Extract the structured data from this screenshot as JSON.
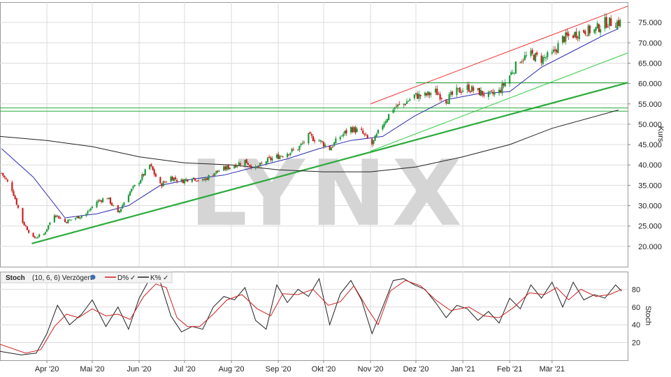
{
  "watermark": "LYNX",
  "colors": {
    "up": "#1a9a3a",
    "down": "#cc1f1f",
    "sma_short": "#2b2bb0",
    "sma_long": "#222222",
    "trend_green": "#2aaa3a",
    "channel_red": "#ee3333",
    "channel_light": "#33cc44",
    "stoch_d": "#cc2222",
    "stoch_k": "#222222"
  },
  "chart_data": [
    {
      "type": "candlestick",
      "panel": "price",
      "ylabel": "Kurs",
      "ylim": [
        15,
        80
      ],
      "yticks": [
        "20.000",
        "25.000",
        "30.000",
        "35.000",
        "40.000",
        "45.000",
        "50.000",
        "55.000",
        "60.000",
        "65.000",
        "70.000",
        "75.000"
      ],
      "ytick_values": [
        20,
        25,
        30,
        35,
        40,
        45,
        50,
        55,
        60,
        65,
        70,
        75
      ],
      "x_date_range": [
        "2020-03-01",
        "2021-04-20"
      ],
      "xticks": [
        {
          "label": "Apr '20",
          "date": "2020-04-01"
        },
        {
          "label": "Mai '20",
          "date": "2020-05-01"
        },
        {
          "label": "Jun '20",
          "date": "2020-06-01"
        },
        {
          "label": "Jul '20",
          "date": "2020-07-01"
        },
        {
          "label": "Aug '20",
          "date": "2020-08-01"
        },
        {
          "label": "Sep '20",
          "date": "2020-09-01"
        },
        {
          "label": "Okt '20",
          "date": "2020-10-01"
        },
        {
          "label": "Nov '20",
          "date": "2020-11-01"
        },
        {
          "label": "Dez '20",
          "date": "2020-12-01"
        },
        {
          "label": "Jan '21",
          "date": "2021-01-01"
        },
        {
          "label": "Feb '21",
          "date": "2021-02-01"
        },
        {
          "label": "Mär '21",
          "date": "2021-03-01"
        }
      ],
      "price_path": [
        [
          "2020-03-02",
          38
        ],
        [
          "2020-03-09",
          34
        ],
        [
          "2020-03-16",
          26
        ],
        [
          "2020-03-23",
          22
        ],
        [
          "2020-03-30",
          23
        ],
        [
          "2020-04-06",
          28
        ],
        [
          "2020-04-13",
          26
        ],
        [
          "2020-04-20",
          27
        ],
        [
          "2020-04-27",
          28
        ],
        [
          "2020-05-04",
          31
        ],
        [
          "2020-05-11",
          32
        ],
        [
          "2020-05-18",
          28
        ],
        [
          "2020-05-25",
          33
        ],
        [
          "2020-06-01",
          36
        ],
        [
          "2020-06-08",
          40
        ],
        [
          "2020-06-15",
          35
        ],
        [
          "2020-06-22",
          37
        ],
        [
          "2020-06-29",
          36
        ],
        [
          "2020-07-06",
          37
        ],
        [
          "2020-07-13",
          36
        ],
        [
          "2020-07-20",
          38
        ],
        [
          "2020-07-27",
          39
        ],
        [
          "2020-08-03",
          40
        ],
        [
          "2020-08-10",
          41
        ],
        [
          "2020-08-17",
          39
        ],
        [
          "2020-08-24",
          41
        ],
        [
          "2020-08-31",
          42
        ],
        [
          "2020-09-07",
          43
        ],
        [
          "2020-09-14",
          44
        ],
        [
          "2020-09-21",
          47
        ],
        [
          "2020-09-28",
          46
        ],
        [
          "2020-10-05",
          44
        ],
        [
          "2020-10-12",
          47
        ],
        [
          "2020-10-19",
          49
        ],
        [
          "2020-10-26",
          48
        ],
        [
          "2020-11-02",
          45
        ],
        [
          "2020-11-09",
          50
        ],
        [
          "2020-11-16",
          54
        ],
        [
          "2020-11-23",
          55
        ],
        [
          "2020-11-30",
          57
        ],
        [
          "2020-12-07",
          57
        ],
        [
          "2020-12-14",
          58
        ],
        [
          "2020-12-21",
          56
        ],
        [
          "2020-12-28",
          58
        ],
        [
          "2021-01-04",
          59
        ],
        [
          "2021-01-11",
          58
        ],
        [
          "2021-01-18",
          57
        ],
        [
          "2021-01-25",
          58
        ],
        [
          "2021-02-01",
          62
        ],
        [
          "2021-02-08",
          66
        ],
        [
          "2021-02-15",
          67
        ],
        [
          "2021-02-22",
          66
        ],
        [
          "2021-03-01",
          67
        ],
        [
          "2021-03-08",
          71
        ],
        [
          "2021-03-15",
          72
        ],
        [
          "2021-03-22",
          73
        ],
        [
          "2021-03-29",
          73
        ],
        [
          "2021-04-05",
          75
        ],
        [
          "2021-04-12",
          75
        ]
      ],
      "sma_short_path": [
        [
          "2020-03-02",
          44
        ],
        [
          "2020-03-23",
          37
        ],
        [
          "2020-04-13",
          27
        ],
        [
          "2020-05-04",
          28
        ],
        [
          "2020-05-25",
          30
        ],
        [
          "2020-06-15",
          35
        ],
        [
          "2020-07-06",
          36.5
        ],
        [
          "2020-07-27",
          37.5
        ],
        [
          "2020-08-17",
          39.5
        ],
        [
          "2020-09-07",
          41.5
        ],
        [
          "2020-09-28",
          44
        ],
        [
          "2020-10-19",
          46
        ],
        [
          "2020-11-09",
          47
        ],
        [
          "2020-11-30",
          52
        ],
        [
          "2020-12-21",
          56
        ],
        [
          "2021-01-11",
          57.5
        ],
        [
          "2021-02-01",
          58
        ],
        [
          "2021-02-22",
          64
        ],
        [
          "2021-03-15",
          68
        ],
        [
          "2021-04-05",
          72
        ],
        [
          "2021-04-14",
          73.5
        ]
      ],
      "sma_long_path": [
        [
          "2020-03-01",
          47
        ],
        [
          "2020-04-01",
          46
        ],
        [
          "2020-05-01",
          44.5
        ],
        [
          "2020-06-01",
          42
        ],
        [
          "2020-07-01",
          40.5
        ],
        [
          "2020-08-01",
          40
        ],
        [
          "2020-09-01",
          38.8
        ],
        [
          "2020-10-01",
          38.3
        ],
        [
          "2020-11-01",
          38.3
        ],
        [
          "2020-12-01",
          39.5
        ],
        [
          "2021-01-01",
          42
        ],
        [
          "2021-02-01",
          45
        ],
        [
          "2021-03-01",
          49
        ],
        [
          "2021-04-14",
          53.5
        ]
      ],
      "lines": [
        {
          "name": "trend_main",
          "from": [
            "2020-03-22",
            20.7
          ],
          "to": [
            "2021-04-20",
            60.2
          ]
        },
        {
          "name": "trend_upper",
          "from": [
            "2020-11-01",
            43.4
          ],
          "to": [
            "2021-04-20",
            67.5
          ]
        },
        {
          "name": "channel_top",
          "from": [
            "2020-11-01",
            55
          ],
          "to": [
            "2021-04-20",
            79
          ]
        },
        {
          "name": "horizontal_60",
          "from": [
            "2020-12-01",
            60.2
          ],
          "to": [
            "2021-04-20",
            60.2
          ]
        },
        {
          "name": "horizontal_54",
          "from": [
            "2020-03-01",
            54
          ],
          "to": [
            "2021-04-20",
            54
          ]
        },
        {
          "name": "horizontal_53",
          "from": [
            "2020-03-01",
            53.2
          ],
          "to": [
            "2021-04-20",
            53.2
          ]
        }
      ]
    },
    {
      "type": "line",
      "panel": "stochastic",
      "ylabel": "Stoch",
      "ylim": [
        0,
        100
      ],
      "yticks": [
        "20",
        "40",
        "60",
        "80"
      ],
      "ytick_values": [
        20,
        40,
        60,
        80
      ],
      "legend": {
        "title": "Stoch",
        "params": "(10, 6, 6) Verzögert",
        "series_d": "D%",
        "series_k": "K%"
      },
      "k_path": [
        [
          "2020-03-01",
          10
        ],
        [
          "2020-03-15",
          6
        ],
        [
          "2020-03-25",
          8
        ],
        [
          "2020-04-01",
          30
        ],
        [
          "2020-04-08",
          62
        ],
        [
          "2020-04-16",
          40
        ],
        [
          "2020-04-24",
          52
        ],
        [
          "2020-05-01",
          68
        ],
        [
          "2020-05-10",
          38
        ],
        [
          "2020-05-18",
          60
        ],
        [
          "2020-05-25",
          35
        ],
        [
          "2020-06-01",
          70
        ],
        [
          "2020-06-08",
          92
        ],
        [
          "2020-06-15",
          88
        ],
        [
          "2020-06-22",
          50
        ],
        [
          "2020-06-29",
          32
        ],
        [
          "2020-07-06",
          38
        ],
        [
          "2020-07-13",
          35
        ],
        [
          "2020-07-20",
          60
        ],
        [
          "2020-07-27",
          72
        ],
        [
          "2020-08-03",
          68
        ],
        [
          "2020-08-10",
          82
        ],
        [
          "2020-08-17",
          45
        ],
        [
          "2020-08-24",
          35
        ],
        [
          "2020-08-31",
          85
        ],
        [
          "2020-09-07",
          65
        ],
        [
          "2020-09-14",
          80
        ],
        [
          "2020-09-21",
          72
        ],
        [
          "2020-09-28",
          92
        ],
        [
          "2020-10-05",
          40
        ],
        [
          "2020-10-12",
          75
        ],
        [
          "2020-10-19",
          90
        ],
        [
          "2020-10-26",
          68
        ],
        [
          "2020-11-02",
          30
        ],
        [
          "2020-11-09",
          60
        ],
        [
          "2020-11-16",
          90
        ],
        [
          "2020-11-23",
          92
        ],
        [
          "2020-11-30",
          85
        ],
        [
          "2020-12-07",
          80
        ],
        [
          "2020-12-14",
          65
        ],
        [
          "2020-12-21",
          48
        ],
        [
          "2020-12-28",
          62
        ],
        [
          "2021-01-04",
          58
        ],
        [
          "2021-01-11",
          45
        ],
        [
          "2021-01-18",
          55
        ],
        [
          "2021-01-25",
          42
        ],
        [
          "2021-02-01",
          70
        ],
        [
          "2021-02-08",
          58
        ],
        [
          "2021-02-15",
          85
        ],
        [
          "2021-02-22",
          70
        ],
        [
          "2021-03-01",
          88
        ],
        [
          "2021-03-08",
          60
        ],
        [
          "2021-03-15",
          88
        ],
        [
          "2021-03-22",
          68
        ],
        [
          "2021-03-29",
          74
        ],
        [
          "2021-04-05",
          70
        ],
        [
          "2021-04-12",
          85
        ],
        [
          "2021-04-16",
          78
        ]
      ],
      "d_path": [
        [
          "2020-03-01",
          18
        ],
        [
          "2020-03-18",
          8
        ],
        [
          "2020-03-28",
          12
        ],
        [
          "2020-04-06",
          38
        ],
        [
          "2020-04-14",
          52
        ],
        [
          "2020-04-22",
          48
        ],
        [
          "2020-05-01",
          58
        ],
        [
          "2020-05-10",
          50
        ],
        [
          "2020-05-18",
          52
        ],
        [
          "2020-05-26",
          46
        ],
        [
          "2020-06-04",
          72
        ],
        [
          "2020-06-12",
          86
        ],
        [
          "2020-06-19",
          82
        ],
        [
          "2020-06-26",
          48
        ],
        [
          "2020-07-03",
          38
        ],
        [
          "2020-07-11",
          38
        ],
        [
          "2020-07-20",
          52
        ],
        [
          "2020-07-29",
          68
        ],
        [
          "2020-08-08",
          74
        ],
        [
          "2020-08-18",
          58
        ],
        [
          "2020-08-27",
          50
        ],
        [
          "2020-09-04",
          75
        ],
        [
          "2020-09-14",
          74
        ],
        [
          "2020-09-24",
          80
        ],
        [
          "2020-10-04",
          62
        ],
        [
          "2020-10-12",
          66
        ],
        [
          "2020-10-21",
          84
        ],
        [
          "2020-10-30",
          58
        ],
        [
          "2020-11-06",
          40
        ],
        [
          "2020-11-14",
          78
        ],
        [
          "2020-11-24",
          90
        ],
        [
          "2020-12-04",
          84
        ],
        [
          "2020-12-14",
          68
        ],
        [
          "2020-12-24",
          56
        ],
        [
          "2021-01-05",
          60
        ],
        [
          "2021-01-15",
          50
        ],
        [
          "2021-01-25",
          48
        ],
        [
          "2021-02-04",
          60
        ],
        [
          "2021-02-14",
          76
        ],
        [
          "2021-02-24",
          74
        ],
        [
          "2021-03-04",
          82
        ],
        [
          "2021-03-12",
          68
        ],
        [
          "2021-03-20",
          80
        ],
        [
          "2021-03-30",
          72
        ],
        [
          "2021-04-08",
          74
        ],
        [
          "2021-04-16",
          80
        ]
      ]
    }
  ]
}
